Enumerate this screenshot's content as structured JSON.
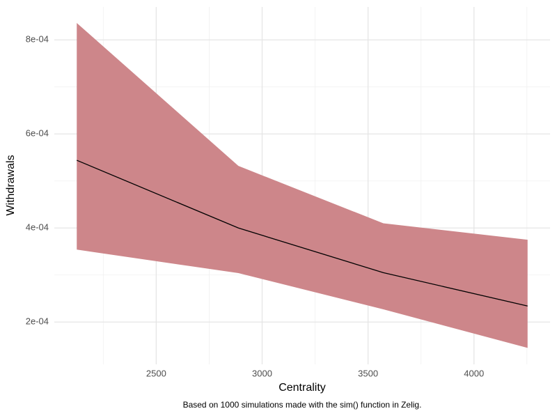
{
  "chart_data": {
    "type": "line",
    "x_label": "Centrality",
    "y_label": "Withdrawals",
    "caption": "Based on 1000 simulations made with the sim() function in Zelig.",
    "x": [
      2125,
      2888,
      3572,
      4253
    ],
    "values": [
      0.000544,
      0.0004,
      0.000305,
      0.000234
    ],
    "ribbon_lower": [
      0.000354,
      0.000304,
      0.000227,
      0.000145
    ],
    "ribbon_upper": [
      0.000836,
      0.000532,
      0.00041,
      0.000375
    ],
    "color": "#000000",
    "ribbon_color": "#cd868a",
    "xlim": [
      2019,
      4359
    ],
    "ylim": [
      0.00011,
      0.00087
    ],
    "xticks": [
      2500,
      3000,
      3500,
      4000
    ],
    "yticks": [
      {
        "value": 0.0002,
        "label": "2e-04"
      },
      {
        "value": 0.0004,
        "label": "4e-04"
      },
      {
        "value": 0.0006,
        "label": "6e-04"
      },
      {
        "value": 0.0008,
        "label": "8e-04"
      }
    ],
    "grid": true
  }
}
